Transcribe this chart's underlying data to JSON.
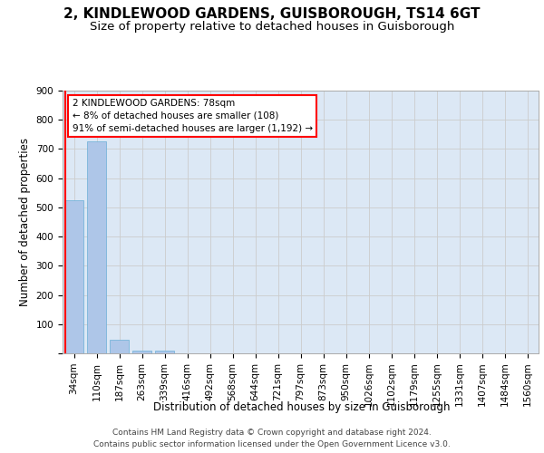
{
  "title_line1": "2, KINDLEWOOD GARDENS, GUISBOROUGH, TS14 6GT",
  "title_line2": "Size of property relative to detached houses in Guisborough",
  "xlabel": "Distribution of detached houses by size in Guisborough",
  "ylabel": "Number of detached properties",
  "categories": [
    "34sqm",
    "110sqm",
    "187sqm",
    "263sqm",
    "339sqm",
    "416sqm",
    "492sqm",
    "568sqm",
    "644sqm",
    "721sqm",
    "797sqm",
    "873sqm",
    "950sqm",
    "1026sqm",
    "1102sqm",
    "1179sqm",
    "1255sqm",
    "1331sqm",
    "1407sqm",
    "1484sqm",
    "1560sqm"
  ],
  "values": [
    525,
    725,
    48,
    10,
    10,
    0,
    0,
    0,
    0,
    0,
    0,
    0,
    0,
    0,
    0,
    0,
    0,
    0,
    0,
    0,
    0
  ],
  "bar_color": "#aec6e8",
  "bar_edge_color": "#6aaed6",
  "annotation_line1": "2 KINDLEWOOD GARDENS: 78sqm",
  "annotation_line2": "← 8% of detached houses are smaller (108)",
  "annotation_line3": "91% of semi-detached houses are larger (1,192) →",
  "annotation_box_color": "white",
  "annotation_box_edge_color": "red",
  "vline_color": "red",
  "ylim": [
    0,
    900
  ],
  "yticks": [
    0,
    100,
    200,
    300,
    400,
    500,
    600,
    700,
    800,
    900
  ],
  "grid_color": "#cccccc",
  "bg_color": "#dce8f5",
  "footer_line1": "Contains HM Land Registry data © Crown copyright and database right 2024.",
  "footer_line2": "Contains public sector information licensed under the Open Government Licence v3.0.",
  "title_fontsize": 11,
  "subtitle_fontsize": 9.5,
  "axis_label_fontsize": 8.5,
  "tick_fontsize": 7.5,
  "annotation_fontsize": 7.5,
  "footer_fontsize": 6.5
}
